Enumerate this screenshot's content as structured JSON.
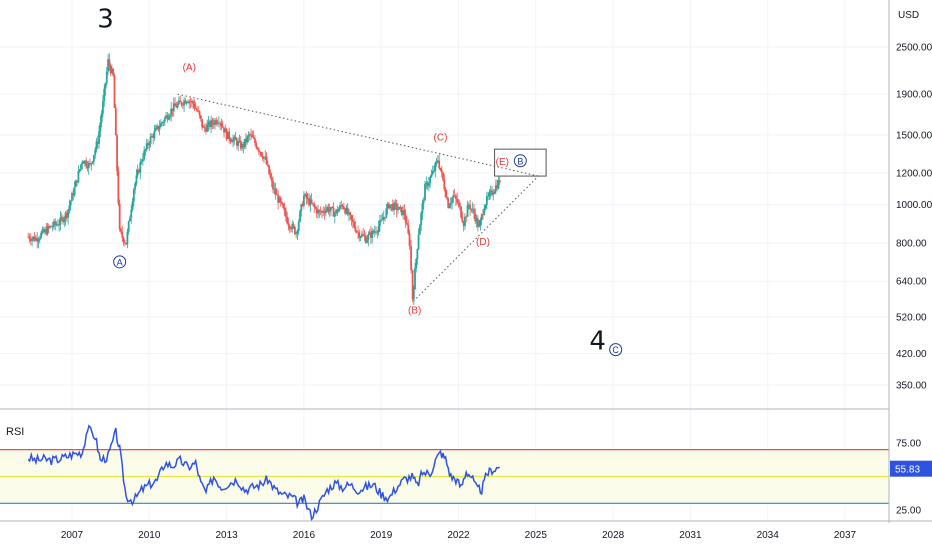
{
  "chart_data": [
    {
      "type": "line",
      "panel": "price",
      "currency_label": "USD",
      "y_scale": "log",
      "ylim": [
        300,
        3000
      ],
      "xlim": [
        2005.3,
        2038.4
      ],
      "y_ticks": [
        "2500.00",
        "1900.00",
        "1500.00",
        "1200.00",
        "1000.00",
        "800.00",
        "640.00",
        "520.00",
        "420.00",
        "350.00"
      ],
      "x_ticks": [
        "2007",
        "2010",
        "2013",
        "2016",
        "2019",
        "2022",
        "2025",
        "2028",
        "2031",
        "2034",
        "2037"
      ],
      "series": [
        {
          "style": "candles",
          "x": [
            2005.3,
            2005.6,
            2005.9,
            2006.2,
            2006.5,
            2006.8,
            2007.1,
            2007.4,
            2007.7,
            2008.0,
            2008.2,
            2008.4,
            2008.6,
            2008.85,
            2009.1,
            2009.4,
            2009.7,
            2010.0,
            2010.3,
            2010.6,
            2010.9,
            2011.2,
            2011.45,
            2011.7,
            2011.9,
            2012.1,
            2012.4,
            2012.7,
            2013.0,
            2013.3,
            2013.6,
            2013.9,
            2014.2,
            2014.5,
            2014.8,
            2015.1,
            2015.4,
            2015.7,
            2016.0,
            2016.3,
            2016.6,
            2016.9,
            2017.2,
            2017.5,
            2017.8,
            2018.1,
            2018.4,
            2018.7,
            2019.0,
            2019.3,
            2019.6,
            2019.9,
            2020.1,
            2020.22,
            2020.45,
            2020.7,
            2021.0,
            2021.2,
            2021.4,
            2021.6,
            2021.8,
            2022.0,
            2022.2,
            2022.4,
            2022.6,
            2022.8,
            2023.0,
            2023.2,
            2023.4,
            2023.6
          ],
          "y": [
            830,
            820,
            850,
            880,
            900,
            950,
            1100,
            1300,
            1250,
            1450,
            1800,
            2300,
            2100,
            850,
            800,
            1100,
            1300,
            1450,
            1550,
            1650,
            1750,
            1800,
            1850,
            1800,
            1700,
            1550,
            1600,
            1650,
            1500,
            1450,
            1400,
            1500,
            1400,
            1300,
            1100,
            1000,
            900,
            850,
            1050,
            1000,
            950,
            980,
            950,
            1000,
            920,
            850,
            820,
            850,
            900,
            1000,
            980,
            950,
            800,
            580,
            850,
            1100,
            1200,
            1300,
            1150,
            1000,
            1050,
            1000,
            900,
            1000,
            950,
            870,
            1000,
            1050,
            1100,
            1150
          ]
        }
      ],
      "annotations": [
        {
          "label": "3",
          "x": 2008.3,
          "y": 2800,
          "kind": "wave-major"
        },
        {
          "label": "(A)",
          "x": 2011.55,
          "y": 2180,
          "kind": "wave-red"
        },
        {
          "label": "A",
          "x": 2008.85,
          "y": 700,
          "kind": "wave-circle"
        },
        {
          "label": "(B)",
          "x": 2020.3,
          "y": 530,
          "kind": "wave-red"
        },
        {
          "label": "(C)",
          "x": 2021.3,
          "y": 1450,
          "kind": "wave-red"
        },
        {
          "label": "(D)",
          "x": 2022.95,
          "y": 790,
          "kind": "wave-red"
        },
        {
          "label": "(E)",
          "x": 2023.7,
          "y": 1260,
          "kind": "wave-red"
        },
        {
          "label": "B",
          "x": 2024.4,
          "y": 1260,
          "kind": "wave-circle"
        },
        {
          "label": "4",
          "x": 2027.4,
          "y": 430,
          "kind": "wave-major"
        },
        {
          "label": "C",
          "x": 2028.1,
          "y": 420,
          "kind": "wave-circle"
        }
      ],
      "trendlines": [
        {
          "from": [
            2011.1,
            1900
          ],
          "to": [
            2025.1,
            1180
          ],
          "style": "dotted"
        },
        {
          "from": [
            2020.25,
            570
          ],
          "to": [
            2025.1,
            1180
          ],
          "style": "dotted"
        }
      ],
      "boxes": [
        {
          "x0": 2023.4,
          "x1": 2025.4,
          "y0": 1180,
          "y1": 1380
        }
      ],
      "grid": true
    },
    {
      "type": "line",
      "panel": "indicator",
      "title": "RSI",
      "ylim": [
        17,
        95
      ],
      "y_ticks": [
        "75.00",
        "25.00"
      ],
      "levels": {
        "upper": 70,
        "middle": 50,
        "lower": 30
      },
      "current_value": "55.83",
      "series": [
        {
          "x": [
            2005.3,
            2005.6,
            2005.9,
            2006.2,
            2006.5,
            2006.8,
            2007.1,
            2007.4,
            2007.6,
            2007.9,
            2008.1,
            2008.4,
            2008.7,
            2008.85,
            2009.1,
            2009.4,
            2009.7,
            2010.0,
            2010.3,
            2010.6,
            2010.9,
            2011.2,
            2011.5,
            2011.8,
            2012.0,
            2012.2,
            2012.5,
            2012.8,
            2013.1,
            2013.4,
            2013.7,
            2014.0,
            2014.3,
            2014.6,
            2014.9,
            2015.2,
            2015.5,
            2015.8,
            2016.0,
            2016.3,
            2016.6,
            2016.9,
            2017.2,
            2017.5,
            2017.8,
            2018.1,
            2018.4,
            2018.7,
            2019.0,
            2019.3,
            2019.6,
            2019.9,
            2020.2,
            2020.4,
            2020.6,
            2020.9,
            2021.1,
            2021.3,
            2021.5,
            2021.7,
            2021.9,
            2022.1,
            2022.3,
            2022.5,
            2022.7,
            2022.9,
            2023.1,
            2023.3,
            2023.6
          ],
          "y": [
            64,
            62,
            63,
            62,
            63,
            65,
            67,
            68,
            86,
            80,
            62,
            65,
            83,
            70,
            35,
            32,
            40,
            44,
            47,
            60,
            58,
            62,
            57,
            60,
            45,
            38,
            50,
            42,
            45,
            48,
            40,
            42,
            44,
            48,
            40,
            36,
            35,
            30,
            33,
            20,
            30,
            40,
            45,
            42,
            44,
            40,
            42,
            44,
            37,
            34,
            42,
            48,
            50,
            43,
            53,
            52,
            62,
            68,
            63,
            50,
            48,
            42,
            54,
            50,
            41,
            40,
            52,
            55,
            57
          ]
        }
      ],
      "grid": true
    }
  ]
}
